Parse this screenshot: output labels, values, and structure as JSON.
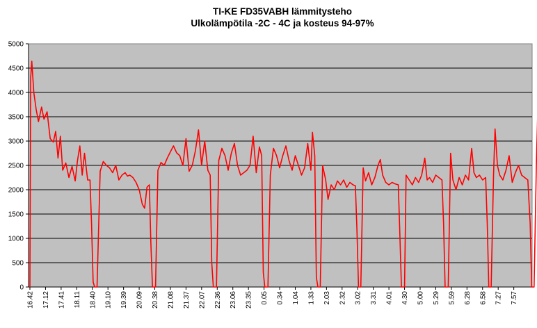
{
  "chart_data": {
    "type": "line",
    "title": "TI-KE FD35VABH lämmitysteho",
    "subtitle": "Ulkolämpötila  -2C - 4C ja kosteus 94-97%",
    "xlabel": "",
    "ylabel": "",
    "ylim": [
      0,
      5000
    ],
    "yticks": [
      0,
      500,
      1000,
      1500,
      2000,
      2500,
      3000,
      3500,
      4000,
      4500,
      5000
    ],
    "xtick_labels": [
      "16.42",
      "17.12",
      "17.41",
      "18.11",
      "18.40",
      "19.10",
      "19.39",
      "20.09",
      "20.38",
      "21.08",
      "21.37",
      "22.07",
      "22.36",
      "23.06",
      "23.35",
      "0.05",
      "0.34",
      "1.04",
      "1.33",
      "2.03",
      "2.32",
      "3.02",
      "3.31",
      "4.01",
      "4.30",
      "5.00",
      "5.29",
      "5.59",
      "6.28",
      "6.58",
      "7.27",
      "7.57"
    ],
    "grid": true,
    "legend": "none",
    "plot_background": "#c0c0c0",
    "line_color": "#ff0000",
    "series": [
      {
        "points": [
          [
            0.0,
            0
          ],
          [
            0.05,
            4300
          ],
          [
            0.12,
            4640
          ],
          [
            0.25,
            4000
          ],
          [
            0.4,
            3650
          ],
          [
            0.55,
            3400
          ],
          [
            0.75,
            3700
          ],
          [
            0.9,
            3450
          ],
          [
            1.1,
            3600
          ],
          [
            1.3,
            3050
          ],
          [
            1.5,
            2980
          ],
          [
            1.65,
            3200
          ],
          [
            1.8,
            2650
          ],
          [
            1.95,
            3100
          ],
          [
            2.1,
            2400
          ],
          [
            2.3,
            2550
          ],
          [
            2.5,
            2250
          ],
          [
            2.7,
            2480
          ],
          [
            2.9,
            2180
          ],
          [
            3.05,
            2600
          ],
          [
            3.2,
            2900
          ],
          [
            3.35,
            2300
          ],
          [
            3.5,
            2750
          ],
          [
            3.7,
            2200
          ],
          [
            3.85,
            2200
          ],
          [
            3.95,
            1300
          ],
          [
            4.05,
            100
          ],
          [
            4.15,
            0
          ],
          [
            4.3,
            0
          ],
          [
            4.5,
            2380
          ],
          [
            4.7,
            2580
          ],
          [
            4.9,
            2500
          ],
          [
            5.1,
            2450
          ],
          [
            5.3,
            2350
          ],
          [
            5.5,
            2500
          ],
          [
            5.7,
            2200
          ],
          [
            5.9,
            2300
          ],
          [
            6.1,
            2350
          ],
          [
            6.25,
            2280
          ],
          [
            6.4,
            2300
          ],
          [
            6.6,
            2250
          ],
          [
            6.8,
            2150
          ],
          [
            7.0,
            2000
          ],
          [
            7.2,
            1700
          ],
          [
            7.35,
            1620
          ],
          [
            7.5,
            2050
          ],
          [
            7.65,
            2100
          ],
          [
            7.75,
            900
          ],
          [
            7.85,
            0
          ],
          [
            8.05,
            0
          ],
          [
            8.2,
            2400
          ],
          [
            8.4,
            2560
          ],
          [
            8.6,
            2500
          ],
          [
            8.8,
            2650
          ],
          [
            9.0,
            2780
          ],
          [
            9.2,
            2900
          ],
          [
            9.4,
            2760
          ],
          [
            9.6,
            2700
          ],
          [
            9.8,
            2500
          ],
          [
            10.0,
            3050
          ],
          [
            10.2,
            2380
          ],
          [
            10.4,
            2500
          ],
          [
            10.6,
            2800
          ],
          [
            10.8,
            3230
          ],
          [
            11.0,
            2500
          ],
          [
            11.2,
            3000
          ],
          [
            11.4,
            2400
          ],
          [
            11.55,
            2300
          ],
          [
            11.65,
            500
          ],
          [
            11.75,
            0
          ],
          [
            11.95,
            0
          ],
          [
            12.1,
            2600
          ],
          [
            12.3,
            2850
          ],
          [
            12.5,
            2700
          ],
          [
            12.7,
            2400
          ],
          [
            12.9,
            2750
          ],
          [
            13.1,
            2950
          ],
          [
            13.3,
            2500
          ],
          [
            13.5,
            2300
          ],
          [
            13.7,
            2350
          ],
          [
            13.9,
            2400
          ],
          [
            14.1,
            2500
          ],
          [
            14.3,
            3100
          ],
          [
            14.5,
            2350
          ],
          [
            14.7,
            2880
          ],
          [
            14.85,
            2700
          ],
          [
            14.95,
            300
          ],
          [
            15.05,
            0
          ],
          [
            15.25,
            0
          ],
          [
            15.4,
            2300
          ],
          [
            15.6,
            2850
          ],
          [
            15.8,
            2700
          ],
          [
            16.0,
            2450
          ],
          [
            16.2,
            2700
          ],
          [
            16.4,
            2900
          ],
          [
            16.6,
            2600
          ],
          [
            16.8,
            2400
          ],
          [
            17.0,
            2700
          ],
          [
            17.2,
            2500
          ],
          [
            17.4,
            2300
          ],
          [
            17.6,
            2450
          ],
          [
            17.8,
            2950
          ],
          [
            18.0,
            2400
          ],
          [
            18.1,
            3180
          ],
          [
            18.25,
            2700
          ],
          [
            18.35,
            200
          ],
          [
            18.45,
            0
          ],
          [
            18.6,
            0
          ],
          [
            18.75,
            2500
          ],
          [
            18.95,
            2200
          ],
          [
            19.1,
            1800
          ],
          [
            19.3,
            2100
          ],
          [
            19.5,
            2000
          ],
          [
            19.7,
            2180
          ],
          [
            19.9,
            2100
          ],
          [
            20.1,
            2200
          ],
          [
            20.3,
            2050
          ],
          [
            20.5,
            2150
          ],
          [
            20.7,
            2100
          ],
          [
            20.85,
            2080
          ],
          [
            20.95,
            1200
          ],
          [
            21.05,
            0
          ],
          [
            21.2,
            0
          ],
          [
            21.35,
            2450
          ],
          [
            21.5,
            2180
          ],
          [
            21.7,
            2350
          ],
          [
            21.9,
            2100
          ],
          [
            22.1,
            2250
          ],
          [
            22.3,
            2500
          ],
          [
            22.45,
            2620
          ],
          [
            22.6,
            2300
          ],
          [
            22.8,
            2150
          ],
          [
            23.0,
            2100
          ],
          [
            23.2,
            2150
          ],
          [
            23.4,
            2120
          ],
          [
            23.6,
            2100
          ],
          [
            23.7,
            1100
          ],
          [
            23.8,
            0
          ],
          [
            24.0,
            0
          ],
          [
            24.1,
            2300
          ],
          [
            24.3,
            2200
          ],
          [
            24.5,
            2100
          ],
          [
            24.7,
            2250
          ],
          [
            24.9,
            2150
          ],
          [
            25.1,
            2300
          ],
          [
            25.3,
            2650
          ],
          [
            25.45,
            2200
          ],
          [
            25.6,
            2250
          ],
          [
            25.8,
            2150
          ],
          [
            26.0,
            2300
          ],
          [
            26.2,
            2250
          ],
          [
            26.4,
            2200
          ],
          [
            26.5,
            1300
          ],
          [
            26.6,
            0
          ],
          [
            26.8,
            0
          ],
          [
            26.95,
            2750
          ],
          [
            27.1,
            2200
          ],
          [
            27.3,
            2000
          ],
          [
            27.5,
            2250
          ],
          [
            27.7,
            2100
          ],
          [
            27.9,
            2300
          ],
          [
            28.1,
            2200
          ],
          [
            28.3,
            2850
          ],
          [
            28.45,
            2350
          ],
          [
            28.6,
            2250
          ],
          [
            28.8,
            2300
          ],
          [
            29.0,
            2200
          ],
          [
            29.2,
            2250
          ],
          [
            29.3,
            1300
          ],
          [
            29.4,
            0
          ],
          [
            29.55,
            0
          ],
          [
            29.7,
            2300
          ],
          [
            29.8,
            3250
          ],
          [
            29.95,
            2500
          ],
          [
            30.1,
            2300
          ],
          [
            30.3,
            2200
          ],
          [
            30.5,
            2400
          ],
          [
            30.7,
            2700
          ],
          [
            30.9,
            2150
          ],
          [
            31.1,
            2350
          ],
          [
            31.3,
            2500
          ],
          [
            31.5,
            2300
          ],
          [
            31.7,
            2250
          ],
          [
            31.9,
            2200
          ],
          [
            32.05,
            1300
          ],
          [
            32.15,
            0
          ],
          [
            32.3,
            0
          ],
          [
            32.45,
            2600
          ],
          [
            32.55,
            3780
          ],
          [
            32.7,
            2500
          ],
          [
            32.85,
            2150
          ],
          [
            33.0,
            2700
          ],
          [
            33.2,
            2300
          ],
          [
            33.4,
            2500
          ],
          [
            33.6,
            2800
          ],
          [
            33.8,
            2200
          ],
          [
            34.0,
            2100
          ],
          [
            34.2,
            2300
          ],
          [
            34.4,
            2250
          ],
          [
            34.6,
            2300
          ],
          [
            34.8,
            2200
          ],
          [
            35.0,
            2250
          ],
          [
            35.1,
            1300
          ],
          [
            35.2,
            0
          ],
          [
            35.35,
            0
          ],
          [
            35.5,
            2600
          ],
          [
            35.6,
            3150
          ],
          [
            35.75,
            2500
          ],
          [
            35.9,
            2200
          ],
          [
            36.1,
            2250
          ],
          [
            36.3,
            2500
          ],
          [
            36.5,
            2900
          ],
          [
            36.7,
            2700
          ],
          [
            36.9,
            2300
          ],
          [
            37.1,
            2150
          ],
          [
            37.3,
            2350
          ],
          [
            37.5,
            2200
          ],
          [
            37.7,
            2250
          ],
          [
            37.9,
            2300
          ],
          [
            38.0,
            1600
          ],
          [
            38.1,
            0
          ],
          [
            38.25,
            0
          ],
          [
            38.4,
            2600
          ],
          [
            38.6,
            2550
          ],
          [
            38.8,
            2700
          ],
          [
            39.0,
            2200
          ],
          [
            39.2,
            2800
          ],
          [
            39.4,
            2900
          ],
          [
            39.6,
            2350
          ],
          [
            39.8,
            2250
          ],
          [
            40.0,
            2200
          ],
          [
            40.2,
            2250
          ],
          [
            40.4,
            2100
          ],
          [
            40.6,
            2250
          ],
          [
            40.8,
            2280
          ],
          [
            40.95,
            1800
          ],
          [
            41.05,
            200
          ],
          [
            41.15,
            0
          ]
        ]
      }
    ]
  }
}
